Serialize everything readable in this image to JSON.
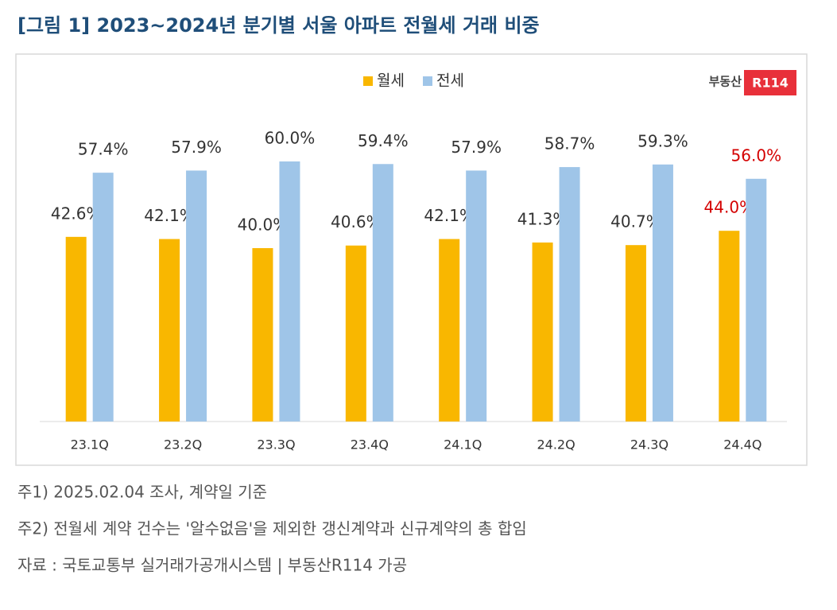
{
  "chart_data": {
    "type": "bar",
    "title": "[그림 1] 2023~2024년 분기별 서울 아파트 전월세 거래 비중",
    "categories": [
      "23.1Q",
      "23.2Q",
      "23.3Q",
      "23.4Q",
      "24.1Q",
      "24.2Q",
      "24.3Q",
      "24.4Q"
    ],
    "series": [
      {
        "name": "월세",
        "color": "#f9b700",
        "values": [
          42.6,
          42.1,
          40.0,
          40.6,
          42.1,
          41.3,
          40.7,
          44.0
        ],
        "value_labels": [
          "42.6%",
          "42.1%",
          "40.0%",
          "40.6%",
          "42.1%",
          "41.3%",
          "40.7%",
          "44.0%"
        ],
        "value_label_colors": [
          "#333333",
          "#333333",
          "#333333",
          "#333333",
          "#333333",
          "#333333",
          "#333333",
          "#d40000"
        ]
      },
      {
        "name": "전세",
        "color": "#9fc5e8",
        "values": [
          57.4,
          57.9,
          60.0,
          59.4,
          57.9,
          58.7,
          59.3,
          56.0
        ],
        "value_labels": [
          "57.4%",
          "57.9%",
          "60.0%",
          "59.4%",
          "57.9%",
          "58.7%",
          "59.3%",
          "56.0%"
        ],
        "value_label_colors": [
          "#333333",
          "#333333",
          "#333333",
          "#333333",
          "#333333",
          "#333333",
          "#333333",
          "#d40000"
        ]
      }
    ],
    "ylim": [
      0,
      70
    ],
    "legend": "top",
    "logo": [
      "부동산",
      "R114"
    ],
    "notes": [
      "주1) 2025.02.04 조사, 계약일 기준",
      "주2) 전월세 계약 건수는 '알수없음'을 제외한 갱신계약과 신규계약의 총 합임"
    ],
    "source": "자료 : 국토교통부 실거래가공개시스템 | 부동산R114 가공"
  }
}
